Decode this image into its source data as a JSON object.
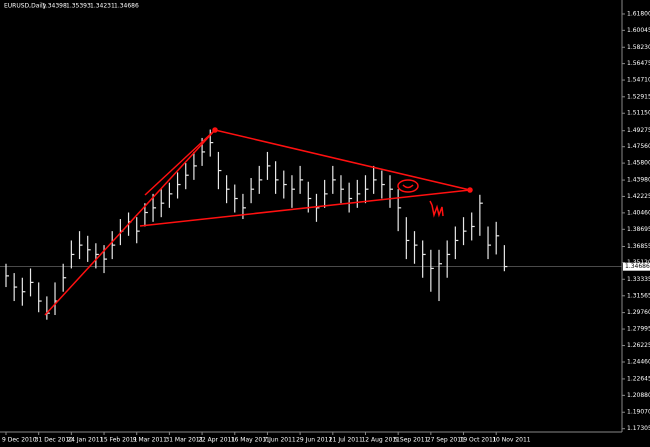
{
  "chart_data": {
    "type": "ohlc",
    "header": {
      "symbol": "EURUSD,Daily",
      "open": 1.34398,
      "high": 1.35393,
      "low": 1.34231,
      "close": 1.34686
    },
    "categories": [
      "9 Dec 2010",
      null,
      null,
      null,
      "31 Dec 2010",
      null,
      null,
      null,
      "24 Jan 2011",
      null,
      null,
      null,
      "15 Feb 2011",
      null,
      null,
      null,
      "9 Mar 2011",
      null,
      null,
      null,
      "31 Mar 2011",
      null,
      null,
      null,
      "22 Apr 2011",
      null,
      null,
      null,
      "16 May 2011",
      null,
      null,
      null,
      "7 Jun 2011",
      null,
      null,
      null,
      "29 Jun 2011",
      null,
      null,
      null,
      "21 Jul 2011",
      null,
      null,
      null,
      "12 Aug 2011",
      null,
      null,
      null,
      "5 Sep 2011",
      null,
      null,
      null,
      "27 Sep 2011",
      null,
      null,
      null,
      "19 Oct 2011",
      null,
      null,
      null,
      "10 Nov 2011",
      null
    ],
    "high": [
      1.35,
      1.34,
      1.335,
      1.345,
      1.33,
      1.315,
      1.33,
      1.35,
      1.375,
      1.385,
      1.38,
      1.372,
      1.37,
      1.385,
      1.398,
      1.405,
      1.4,
      1.415,
      1.425,
      1.43,
      1.437,
      1.448,
      1.458,
      1.47,
      1.485,
      1.494,
      1.47,
      1.445,
      1.435,
      1.425,
      1.442,
      1.455,
      1.47,
      1.46,
      1.45,
      1.445,
      1.455,
      1.438,
      1.425,
      1.44,
      1.455,
      1.445,
      1.437,
      1.44,
      1.445,
      1.455,
      1.45,
      1.445,
      1.43,
      1.4,
      1.385,
      1.375,
      1.365,
      1.365,
      1.375,
      1.39,
      1.4,
      1.405,
      1.424,
      1.39,
      1.395,
      1.37
    ],
    "low": [
      1.325,
      1.31,
      1.305,
      1.315,
      1.298,
      1.29,
      1.295,
      1.32,
      1.345,
      1.355,
      1.352,
      1.345,
      1.34,
      1.355,
      1.37,
      1.38,
      1.372,
      1.39,
      1.395,
      1.4,
      1.41,
      1.42,
      1.43,
      1.44,
      1.455,
      1.465,
      1.43,
      1.415,
      1.405,
      1.398,
      1.415,
      1.425,
      1.44,
      1.425,
      1.42,
      1.41,
      1.425,
      1.405,
      1.395,
      1.41,
      1.425,
      1.415,
      1.405,
      1.41,
      1.415,
      1.425,
      1.42,
      1.41,
      1.385,
      1.355,
      1.35,
      1.335,
      1.32,
      1.31,
      1.335,
      1.355,
      1.37,
      1.375,
      1.38,
      1.355,
      1.36,
      1.342
    ],
    "close": [
      1.337,
      1.325,
      1.32,
      1.33,
      1.31,
      1.297,
      1.31,
      1.335,
      1.36,
      1.37,
      1.365,
      1.36,
      1.355,
      1.37,
      1.385,
      1.395,
      1.385,
      1.405,
      1.41,
      1.415,
      1.425,
      1.435,
      1.445,
      1.455,
      1.47,
      1.48,
      1.45,
      1.43,
      1.42,
      1.41,
      1.43,
      1.44,
      1.455,
      1.44,
      1.435,
      1.43,
      1.44,
      1.42,
      1.41,
      1.425,
      1.44,
      1.43,
      1.42,
      1.425,
      1.43,
      1.44,
      1.435,
      1.43,
      1.41,
      1.375,
      1.37,
      1.36,
      1.345,
      1.35,
      1.36,
      1.375,
      1.385,
      1.39,
      1.415,
      1.37,
      1.38,
      1.347
    ],
    "color": "#e8e8e8",
    "ylim": [
      1.1695,
      1.633
    ],
    "yticks": [
      {
        "value": 1.618,
        "label": "1.61800"
      },
      {
        "value": 1.60045,
        "label": "1.60045"
      },
      {
        "value": 1.5823,
        "label": "1.58230"
      },
      {
        "value": 1.56475,
        "label": "1.56475"
      },
      {
        "value": 1.5471,
        "label": "1.54710"
      },
      {
        "value": 1.52915,
        "label": "1.52915"
      },
      {
        "value": 1.5115,
        "label": "1.51150"
      },
      {
        "value": 1.49275,
        "label": "1.49275"
      },
      {
        "value": 1.4756,
        "label": "1.47560"
      },
      {
        "value": 1.458,
        "label": "1.45800"
      },
      {
        "value": 1.4398,
        "label": "1.43980"
      },
      {
        "value": 1.42225,
        "label": "1.42225"
      },
      {
        "value": 1.4046,
        "label": "1.40460"
      },
      {
        "value": 1.38695,
        "label": "1.38695"
      },
      {
        "value": 1.36855,
        "label": "1.36855"
      },
      {
        "value": 1.3512,
        "label": "1.35120"
      },
      {
        "value": 1.33335,
        "label": "1.33335"
      },
      {
        "value": 1.31565,
        "label": "1.31565"
      },
      {
        "value": 1.2976,
        "label": "1.29760"
      },
      {
        "value": 1.27995,
        "label": "1.27995"
      },
      {
        "value": 1.26225,
        "label": "1.26225"
      },
      {
        "value": 1.2446,
        "label": "1.24460"
      },
      {
        "value": 1.22645,
        "label": "1.22645"
      },
      {
        "value": 1.2088,
        "label": "1.20880"
      },
      {
        "value": 1.1907,
        "label": "1.19070"
      },
      {
        "value": 1.17305,
        "label": "1.17305"
      }
    ]
  }
}
